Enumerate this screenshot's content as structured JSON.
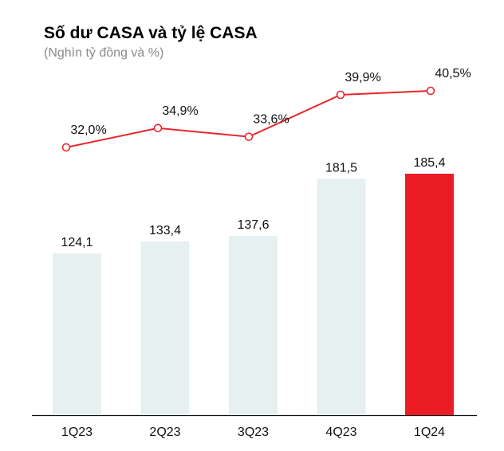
{
  "chart_data": {
    "type": "bar+line",
    "title": "Số dư CASA và tỷ lệ CASA",
    "subtitle": "(Nghìn tỷ đồng và %)",
    "categories": [
      "1Q23",
      "2Q23",
      "3Q23",
      "4Q23",
      "1Q24"
    ],
    "series": [
      {
        "type": "bar",
        "values": [
          124.1,
          133.4,
          137.6,
          181.5,
          185.4
        ],
        "labels": [
          "124,1",
          "133,4",
          "137,6",
          "181,5",
          "185,4"
        ],
        "colors": [
          "#e6f0f0",
          "#e6f0f0",
          "#e6f0f0",
          "#e6f0f0",
          "#ec1c24"
        ]
      },
      {
        "type": "line",
        "values": [
          32.0,
          34.9,
          33.6,
          39.9,
          40.5
        ],
        "labels": [
          "32,0%",
          "34,9%",
          "33,6%",
          "39,9%",
          "40,5%"
        ],
        "color": "#e8262b"
      }
    ],
    "bar_ylim": [
      0,
      185.4
    ],
    "line_ylim": [
      32.0,
      40.5
    ],
    "grid": false,
    "legend": "none"
  }
}
